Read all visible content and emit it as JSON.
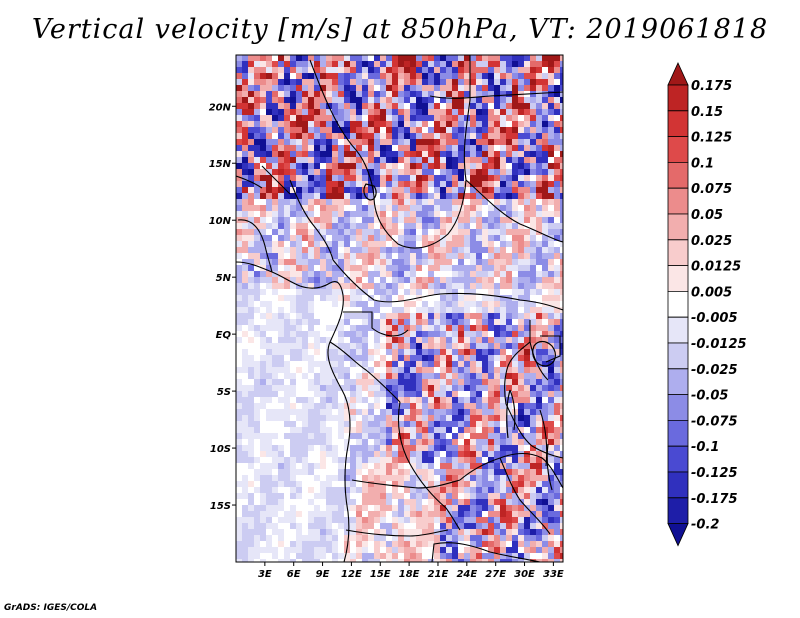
{
  "title": "Vertical velocity [m/s] at 850hPa, VT: 2019061818",
  "credit": "GrADS: IGES/COLA",
  "chart_data": {
    "type": "heatmap",
    "title": "Vertical velocity [m/s] at 850hPa, VT: 2019061818",
    "variable": "Vertical velocity",
    "units": "m/s",
    "level": "850hPa",
    "valid_time": "2019061818",
    "x_axis": {
      "ticks": [
        3,
        6,
        9,
        12,
        15,
        18,
        21,
        24,
        27,
        30,
        33
      ],
      "tick_labels": [
        "3E",
        "6E",
        "9E",
        "12E",
        "15E",
        "18E",
        "21E",
        "24E",
        "27E",
        "30E",
        "33E"
      ],
      "range": [
        0,
        34
      ]
    },
    "y_axis": {
      "ticks": [
        -15,
        -10,
        -5,
        0,
        5,
        10,
        15,
        20
      ],
      "tick_labels": [
        "15S",
        "10S",
        "5S",
        "EQ",
        "5N",
        "10N",
        "15N",
        "20N"
      ],
      "range": [
        -20,
        24.5
      ]
    },
    "colorbar": {
      "levels": [
        0.175,
        0.15,
        0.125,
        0.1,
        0.075,
        0.05,
        0.025,
        0.0125,
        0.005,
        -0.005,
        -0.0125,
        -0.025,
        -0.05,
        -0.075,
        -0.1,
        -0.125,
        -0.175,
        -0.2
      ],
      "labels": [
        "0.175",
        "0.15",
        "0.125",
        "0.1",
        "0.075",
        "0.05",
        "0.025",
        "0.0125",
        "0.005",
        "-0.005",
        "-0.0125",
        "-0.025",
        "-0.05",
        "-0.075",
        "-0.1",
        "-0.125",
        "-0.175",
        "-0.2"
      ],
      "colors": [
        "#a01818",
        "#be2424",
        "#d23434",
        "#de4a4a",
        "#e46a6a",
        "#ec8c8c",
        "#f2aeae",
        "#f8cccc",
        "#fbe6e6",
        "#ffffff",
        "#e6e6f8",
        "#ccccf2",
        "#aeaeee",
        "#8c8ce6",
        "#6a6ade",
        "#4a4ad2",
        "#3030be",
        "#1e1ea8",
        "#101094"
      ]
    }
  }
}
